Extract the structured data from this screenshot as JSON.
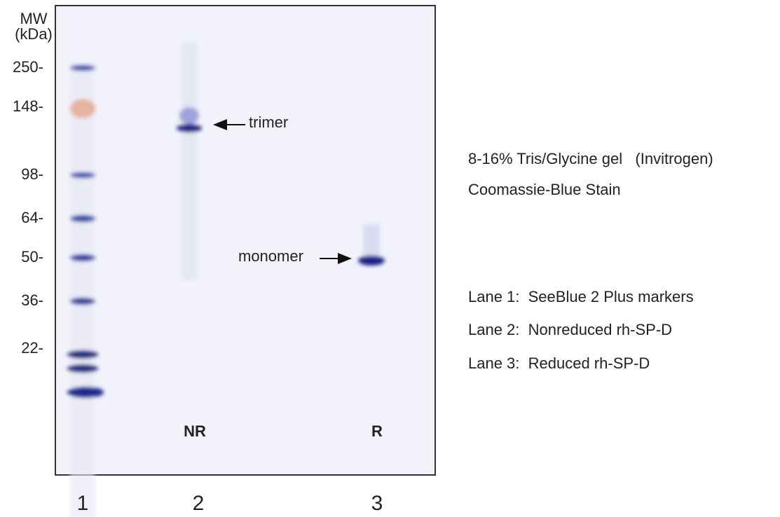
{
  "header": {
    "mw": "MW",
    "unit": "(kDa)"
  },
  "markers": [
    "250-",
    "148-",
    "98-",
    "64-",
    "50-",
    "36-",
    "22-"
  ],
  "gel": {
    "annotations": {
      "trimer": "trimer",
      "monomer": "monomer"
    },
    "lane_codes": [
      "NR",
      "R"
    ],
    "lane_numbers": [
      "1",
      "2",
      "3"
    ]
  },
  "legend": {
    "gel": "8-16% Tris/Glycine gel   (Invitrogen)",
    "stain": "Coomassie-Blue Stain",
    "lanes": [
      "Lane 1:  SeeBlue 2 Plus markers",
      "Lane 2:  Nonreduced rh-SP-D",
      "Lane 3:  Reduced rh-SP-D"
    ]
  }
}
